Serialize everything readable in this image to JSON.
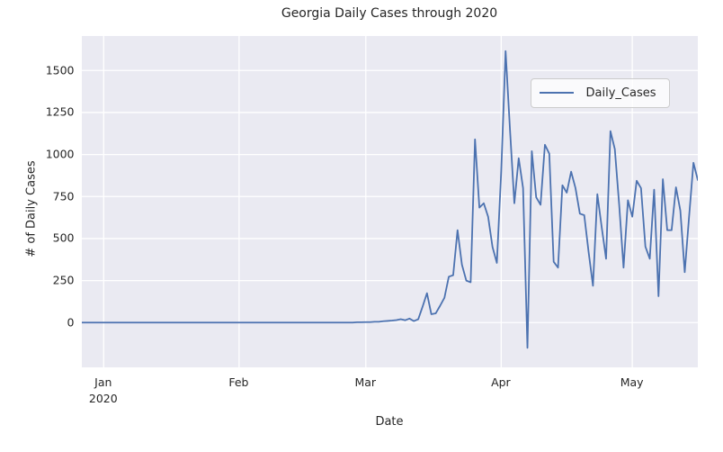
{
  "title": "Georgia Daily Cases through 2020",
  "chart_data": {
    "type": "line",
    "title": "Georgia Daily Cases through 2020",
    "xlabel": "Date",
    "ylabel": "# of Daily Cases",
    "legend_position": "upper right",
    "grid": true,
    "colors": {
      "line": "#4c72b0",
      "plot_background": "#eaeaf2",
      "gridline": "#ffffff",
      "text": "#262626",
      "legend_border": "#cccccc"
    },
    "x_range": [
      "2019-12-27",
      "2020-05-20"
    ],
    "ylim": [
      -269,
      1705
    ],
    "y_ticks": [
      0,
      250,
      500,
      750,
      1000,
      1250,
      1500
    ],
    "x_ticks": [
      {
        "label": "Jan",
        "year": "2020",
        "day_index": 5
      },
      {
        "label": "Feb",
        "year": "",
        "day_index": 36
      },
      {
        "label": "Mar",
        "year": "",
        "day_index": 65
      },
      {
        "label": "Apr",
        "year": "",
        "day_index": 96
      },
      {
        "label": "May",
        "year": "",
        "day_index": 126
      }
    ],
    "series": [
      {
        "name": "Daily_Cases",
        "values": [
          0,
          0,
          0,
          0,
          0,
          0,
          0,
          0,
          0,
          0,
          0,
          0,
          0,
          0,
          0,
          0,
          0,
          0,
          0,
          0,
          0,
          0,
          0,
          0,
          0,
          0,
          0,
          0,
          0,
          0,
          0,
          0,
          0,
          0,
          0,
          0,
          0,
          0,
          0,
          0,
          0,
          0,
          0,
          0,
          0,
          0,
          0,
          0,
          0,
          0,
          0,
          0,
          0,
          0,
          0,
          0,
          0,
          0,
          0,
          0,
          0,
          0,
          0,
          2,
          2,
          3,
          3,
          5,
          5,
          8,
          10,
          12,
          15,
          20,
          14,
          24,
          9,
          20,
          95,
          175,
          50,
          55,
          100,
          148,
          273,
          282,
          550,
          345,
          250,
          240,
          1090,
          684,
          710,
          630,
          450,
          355,
          900,
          1615,
          1150,
          710,
          978,
          800,
          -150,
          1020,
          746,
          701,
          1058,
          1005,
          362,
          327,
          817,
          773,
          898,
          800,
          648,
          639,
          420,
          219,
          764,
          567,
          380,
          1139,
          1032,
          701,
          327,
          728,
          630,
          844,
          800,
          452,
          380,
          791,
          157,
          853,
          550,
          550,
          805,
          666,
          300,
          630,
          951,
          848
        ]
      }
    ]
  },
  "legend": {
    "label": "Daily_Cases"
  },
  "labels": {
    "xaxis": "Date",
    "yaxis": "# of Daily Cases"
  }
}
